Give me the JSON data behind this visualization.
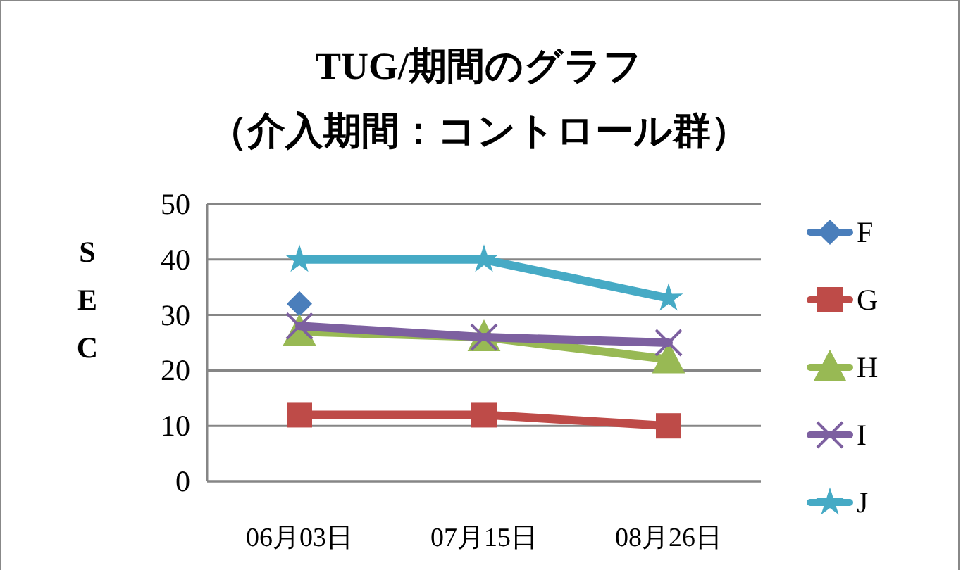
{
  "chart_data": {
    "type": "line",
    "title": "TUG/期間のグラフ",
    "subtitle": "（介入期間：コントロール群）",
    "ylabel": "SEC",
    "categories": [
      "06月03日",
      "07月15日",
      "08月26日"
    ],
    "ylim": [
      0,
      50
    ],
    "yticks": [
      0,
      10,
      20,
      30,
      40,
      50
    ],
    "grid": "y",
    "legend": "right",
    "series": [
      {
        "name": "F",
        "color": "#4a7ebb",
        "marker": "diamond",
        "values": [
          32,
          null,
          null
        ]
      },
      {
        "name": "G",
        "color": "#be4b48",
        "marker": "square",
        "values": [
          12,
          12,
          10
        ]
      },
      {
        "name": "H",
        "color": "#98b954",
        "marker": "triangle",
        "values": [
          27,
          26,
          22
        ]
      },
      {
        "name": "I",
        "color": "#7d60a0",
        "marker": "cross",
        "values": [
          28,
          26,
          25
        ]
      },
      {
        "name": "J",
        "color": "#46aac5",
        "marker": "star",
        "values": [
          40,
          40,
          33
        ]
      }
    ]
  }
}
